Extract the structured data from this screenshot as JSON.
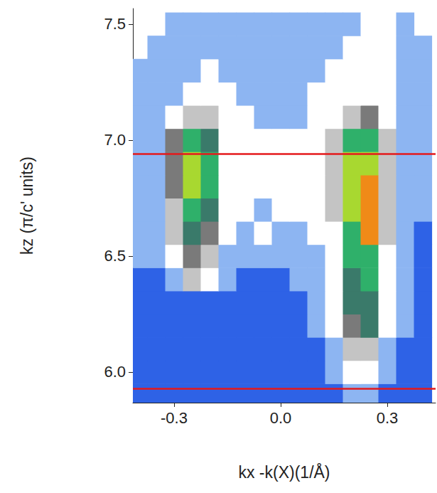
{
  "chart_data": {
    "type": "heatmap",
    "x_label": "kx -k(X)(1/Å)",
    "y_label": "kz (π/c' units)",
    "xlim": [
      -0.416,
      0.436
    ],
    "ylim": [
      5.868,
      7.567
    ],
    "xticks": [
      -0.3,
      {
        "value": 0,
        "label": "0.0"
      },
      0.3
    ],
    "yticks": [
      {
        "value": 6,
        "label": "6.0"
      },
      6.5,
      {
        "value": 7,
        "label": "7.0"
      },
      7.5
    ],
    "grid": false,
    "heatmap": {
      "x": [
        -0.4,
        -0.35,
        -0.3,
        -0.25,
        -0.2,
        -0.15,
        -0.1,
        -0.05,
        0.0,
        0.05,
        0.1,
        0.15,
        0.2,
        0.25,
        0.3,
        0.35,
        0.4
      ],
      "y": [
        5.9,
        6.0,
        6.1,
        6.2,
        6.3,
        6.4,
        6.5,
        6.6,
        6.7,
        6.8,
        6.9,
        7.0,
        7.1,
        7.2,
        7.3,
        7.4,
        7.5
      ],
      "zlim": [
        0,
        10
      ],
      "values": [
        [
          1,
          1,
          1,
          1,
          1,
          1,
          1,
          1,
          1,
          1,
          1,
          1,
          2,
          2,
          1,
          1,
          1
        ],
        [
          1,
          1,
          1,
          1,
          1,
          1,
          1,
          1,
          1,
          1,
          1,
          2,
          3,
          3,
          2,
          1,
          1
        ],
        [
          1,
          1,
          1,
          1,
          1,
          1,
          1,
          1,
          1,
          1,
          1,
          2,
          4,
          4,
          2,
          1,
          1
        ],
        [
          1,
          1,
          1,
          1,
          1,
          1,
          1,
          1,
          1,
          1,
          2,
          3,
          5,
          6,
          3,
          2,
          1
        ],
        [
          1,
          1,
          1,
          1,
          1,
          1,
          1,
          1,
          1,
          1,
          2,
          3,
          6,
          6,
          3,
          2,
          1
        ],
        [
          1,
          1,
          2,
          4,
          3,
          2,
          1,
          1,
          1,
          2,
          2,
          3,
          6,
          7,
          3,
          2,
          1
        ],
        [
          2,
          2,
          3,
          5,
          4,
          2,
          2,
          2,
          2,
          2,
          2,
          3,
          7,
          7,
          3,
          2,
          1
        ],
        [
          2,
          2,
          4,
          6,
          5,
          3,
          2,
          3,
          2,
          2,
          3,
          3,
          7,
          9,
          4,
          2,
          1
        ],
        [
          2,
          2,
          4,
          7,
          6,
          3,
          3,
          2,
          3,
          3,
          3,
          4,
          8,
          9,
          4,
          2,
          2
        ],
        [
          2,
          2,
          5,
          8,
          7,
          3,
          3,
          3,
          3,
          3,
          3,
          4,
          8,
          9,
          4,
          2,
          2
        ],
        [
          2,
          2,
          5,
          8,
          7,
          3,
          3,
          3,
          3,
          3,
          3,
          4,
          8,
          8,
          4,
          2,
          2
        ],
        [
          2,
          2,
          5,
          7,
          6,
          3,
          3,
          3,
          3,
          3,
          3,
          4,
          7,
          7,
          4,
          2,
          2
        ],
        [
          2,
          2,
          3,
          4,
          4,
          3,
          3,
          2,
          2,
          2,
          3,
          3,
          4,
          5,
          3,
          2,
          2
        ],
        [
          2,
          2,
          2,
          3,
          3,
          3,
          2,
          2,
          2,
          2,
          3,
          3,
          3,
          3,
          3,
          2,
          2
        ],
        [
          2,
          2,
          2,
          2,
          3,
          2,
          2,
          2,
          2,
          2,
          2,
          3,
          3,
          3,
          3,
          2,
          2
        ],
        [
          null,
          2,
          2,
          2,
          2,
          2,
          2,
          2,
          2,
          2,
          2,
          2,
          3,
          3,
          3,
          2,
          2
        ],
        [
          null,
          null,
          2,
          2,
          2,
          2,
          2,
          2,
          2,
          2,
          2,
          2,
          2,
          3,
          3,
          2,
          null
        ]
      ]
    },
    "hlines": {
      "values": [
        6.94,
        5.93
      ],
      "color": "#e41a1c"
    }
  }
}
